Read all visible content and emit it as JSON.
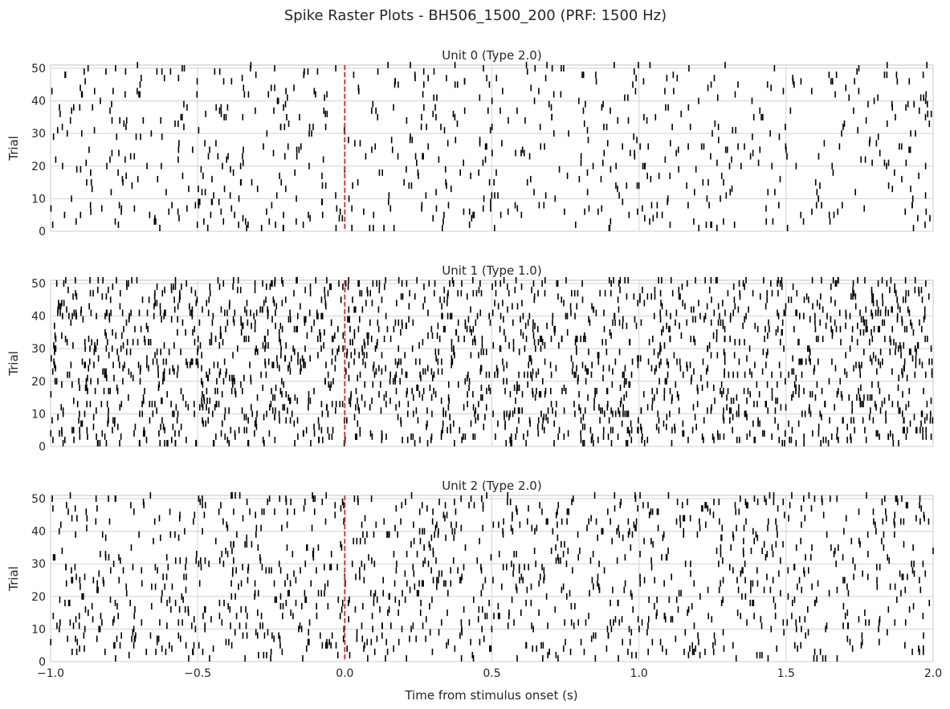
{
  "chart_data": {
    "type": "raster",
    "title": "Spike Raster Plots - BH506_1500_200 (PRF: 1500 Hz)",
    "xlabel": "Time from stimulus onset (s)",
    "xlim": [
      -1.0,
      2.0
    ],
    "xticks": [
      -1.0,
      -0.5,
      0.0,
      0.5,
      1.0,
      1.5,
      2.0
    ],
    "xtick_labels": [
      "−1.0",
      "−0.5",
      "0.0",
      "0.5",
      "1.0",
      "1.5",
      "2.0"
    ],
    "stimulus_onset": 0.0,
    "stimulus_line_color": "#d62728",
    "spike_color": "#000000",
    "grid": true,
    "panels": [
      {
        "title": "Unit 0 (Type 2.0)",
        "ylabel": "Trial",
        "ylim": [
          0,
          51
        ],
        "yticks": [
          0,
          10,
          20,
          30,
          40,
          50
        ],
        "n_trials": 51,
        "spike_density": 0.5
      },
      {
        "title": "Unit 1 (Type 1.0)",
        "ylabel": "Trial",
        "ylim": [
          0,
          51
        ],
        "yticks": [
          0,
          10,
          20,
          30,
          40,
          50
        ],
        "n_trials": 51,
        "spike_density": 1.4
      },
      {
        "title": "Unit 2 (Type 2.0)",
        "ylabel": "Trial",
        "ylim": [
          0,
          51
        ],
        "yticks": [
          0,
          10,
          20,
          30,
          40,
          50
        ],
        "n_trials": 51,
        "spike_density": 0.8
      }
    ]
  }
}
